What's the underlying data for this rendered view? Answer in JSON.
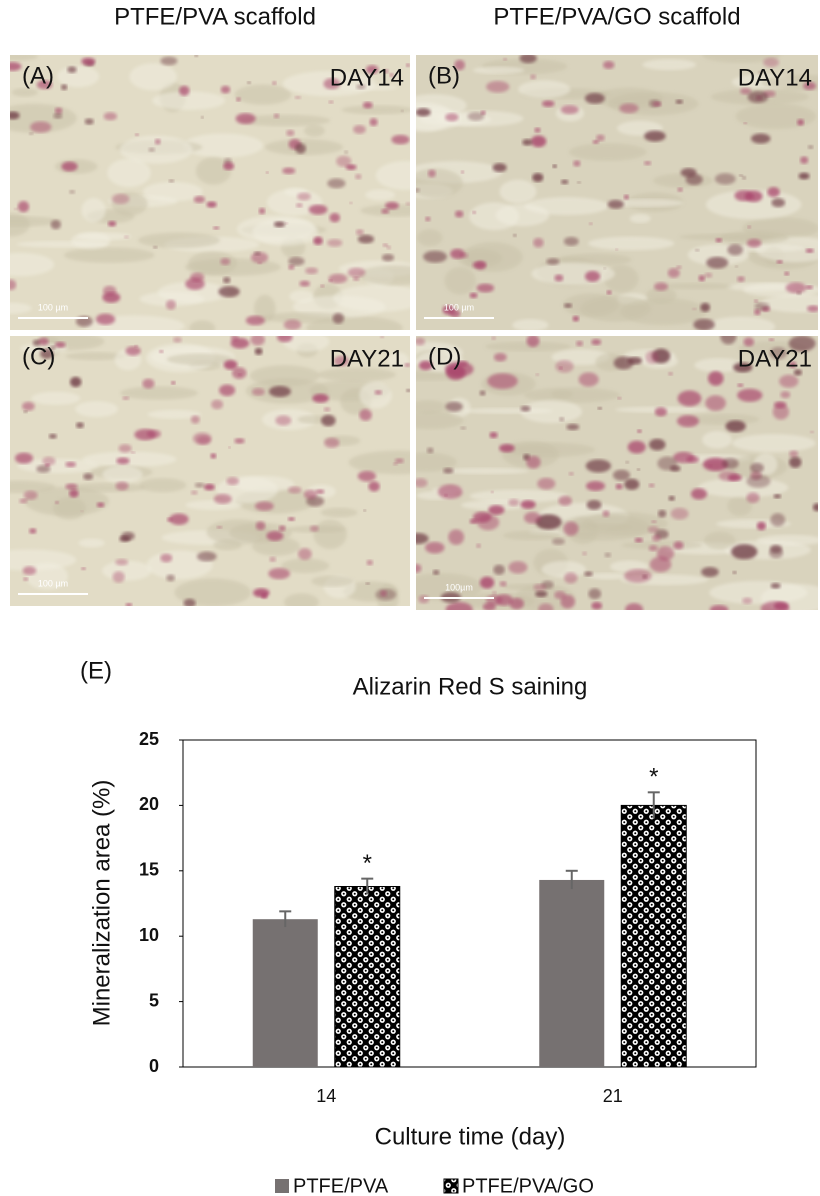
{
  "figure": {
    "columns": [
      "PTFE/PVA scaffold",
      "PTFE/PVA/GO scaffold"
    ],
    "panels": [
      {
        "label": "(A)",
        "day": "DAY14",
        "scale_bar": "100 µm"
      },
      {
        "label": "(B)",
        "day": "DAY14",
        "scale_bar": "100 µm"
      },
      {
        "label": "(C)",
        "day": "DAY21",
        "scale_bar": "100 µm"
      },
      {
        "label": "(D)",
        "day": "DAY21",
        "scale_bar": "100µm"
      }
    ]
  },
  "chart_data": {
    "type": "bar",
    "panel_label": "(E)",
    "title": "Alizarin Red S saining",
    "x_label": "Culture time (day)",
    "y_label": "Mineralization area (%)",
    "categories": [
      "14",
      "21"
    ],
    "series": [
      {
        "name": "PTFE/PVA",
        "color": "#767171",
        "values": [
          11.3,
          14.3
        ],
        "errors": [
          0.6,
          0.7
        ]
      },
      {
        "name": "PTFE/PVA/GO",
        "color": "#000000",
        "pattern": true,
        "values": [
          13.8,
          20.0
        ],
        "errors": [
          0.6,
          1.0
        ],
        "markers": [
          "*",
          "*"
        ]
      }
    ],
    "ylim": [
      0,
      25
    ],
    "yticks": [
      0,
      5,
      10,
      15,
      20,
      25
    ],
    "grid": false,
    "legend": "bottom"
  }
}
